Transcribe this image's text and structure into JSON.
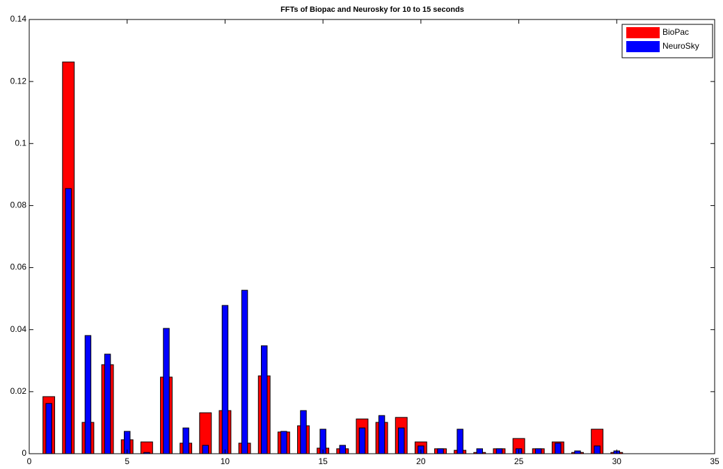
{
  "chart_data": {
    "type": "bar",
    "title": "FFTs of Biopac and Neurosky for 10 to 15 seconds",
    "x": [
      1,
      2,
      3,
      4,
      5,
      6,
      7,
      8,
      9,
      10,
      11,
      12,
      13,
      14,
      15,
      16,
      17,
      18,
      19,
      20,
      21,
      22,
      23,
      24,
      25,
      26,
      27,
      28,
      29,
      30
    ],
    "series": [
      {
        "name": "BioPac",
        "color": "#ff0000",
        "values": [
          0.0184,
          0.1263,
          0.0101,
          0.0287,
          0.0045,
          0.0038,
          0.0247,
          0.0034,
          0.0132,
          0.0139,
          0.0034,
          0.0251,
          0.007,
          0.009,
          0.0018,
          0.0016,
          0.0112,
          0.0101,
          0.0117,
          0.0038,
          0.0016,
          0.0011,
          0.0004,
          0.0016,
          0.0049,
          0.0016,
          0.0038,
          0.0004,
          0.0079,
          0.0004
        ]
      },
      {
        "name": "NeuroSky",
        "color": "#0000ff",
        "values": [
          0.0162,
          0.0855,
          0.0381,
          0.0321,
          0.0072,
          0.0004,
          0.0404,
          0.0083,
          0.0027,
          0.0478,
          0.0527,
          0.0348,
          0.0072,
          0.0139,
          0.0079,
          0.0027,
          0.0083,
          0.0123,
          0.0083,
          0.0025,
          0.0016,
          0.0079,
          0.0016,
          0.0016,
          0.0016,
          0.0016,
          0.0034,
          0.0009,
          0.0025,
          0.0009
        ]
      }
    ],
    "xlim": [
      0,
      35
    ],
    "xticks": [
      0,
      5,
      10,
      15,
      20,
      25,
      30,
      35
    ],
    "ylim": [
      0,
      0.14
    ],
    "yticks": [
      0,
      0.02,
      0.04,
      0.06,
      0.08,
      0.1,
      0.12,
      0.14
    ],
    "legend": "upper right"
  }
}
